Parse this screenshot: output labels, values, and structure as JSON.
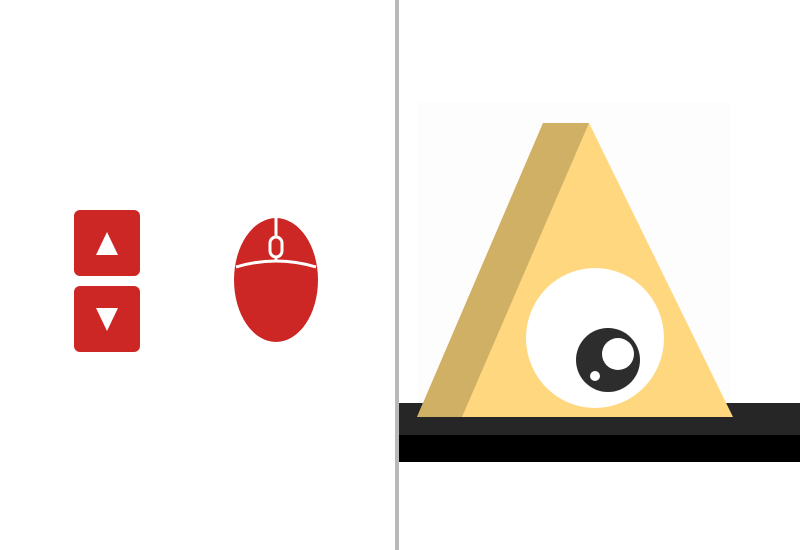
{
  "controls": {
    "up_key_icon": "arrow-up-icon",
    "down_key_icon": "arrow-down-icon",
    "mouse_icon": "mouse-icon",
    "key_color": "#cd2725",
    "glyph_color": "#ffffff"
  },
  "scene": {
    "character": "triangle-eye-character",
    "character_front_color": "#ffd77f",
    "character_side_color": "#d0b065",
    "eye_white_color": "#ffffff",
    "pupil_color": "#2d2d2d",
    "ground_top_color": "#262626",
    "ground_bottom_color": "#000000",
    "backdrop_color": "#fdfdfd"
  },
  "divider_color": "#b9b9b9"
}
